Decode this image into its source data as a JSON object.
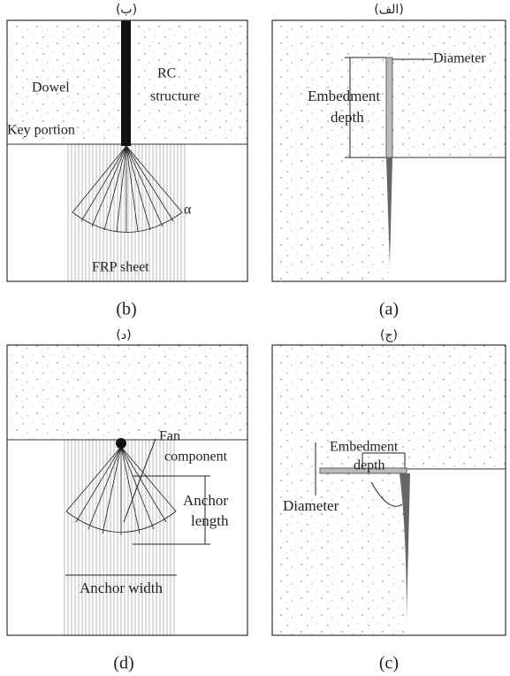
{
  "panels": {
    "a": {
      "caption_fa": "(الف)",
      "caption": "(a)",
      "diameter": "Diameter",
      "embedment_depth": [
        "Embedment",
        "depth"
      ]
    },
    "b": {
      "caption_fa": "(ب)",
      "caption": "(b)",
      "dowel": "Dowel",
      "rc_structure": [
        "RC",
        "structure"
      ],
      "key_portion": "Key portion",
      "alpha": "α",
      "frp_sheet": "FRP sheet"
    },
    "c": {
      "caption_fa": "(ج)",
      "caption": "(c)",
      "embedment_depth": [
        "Embedment",
        "depth"
      ],
      "diameter": "Diameter"
    },
    "d": {
      "caption_fa": "(د)",
      "caption": "(d)",
      "fan_component": [
        "Fan",
        "component"
      ],
      "anchor_length": [
        "Anchor",
        "length"
      ],
      "anchor_width": "Anchor width"
    }
  }
}
